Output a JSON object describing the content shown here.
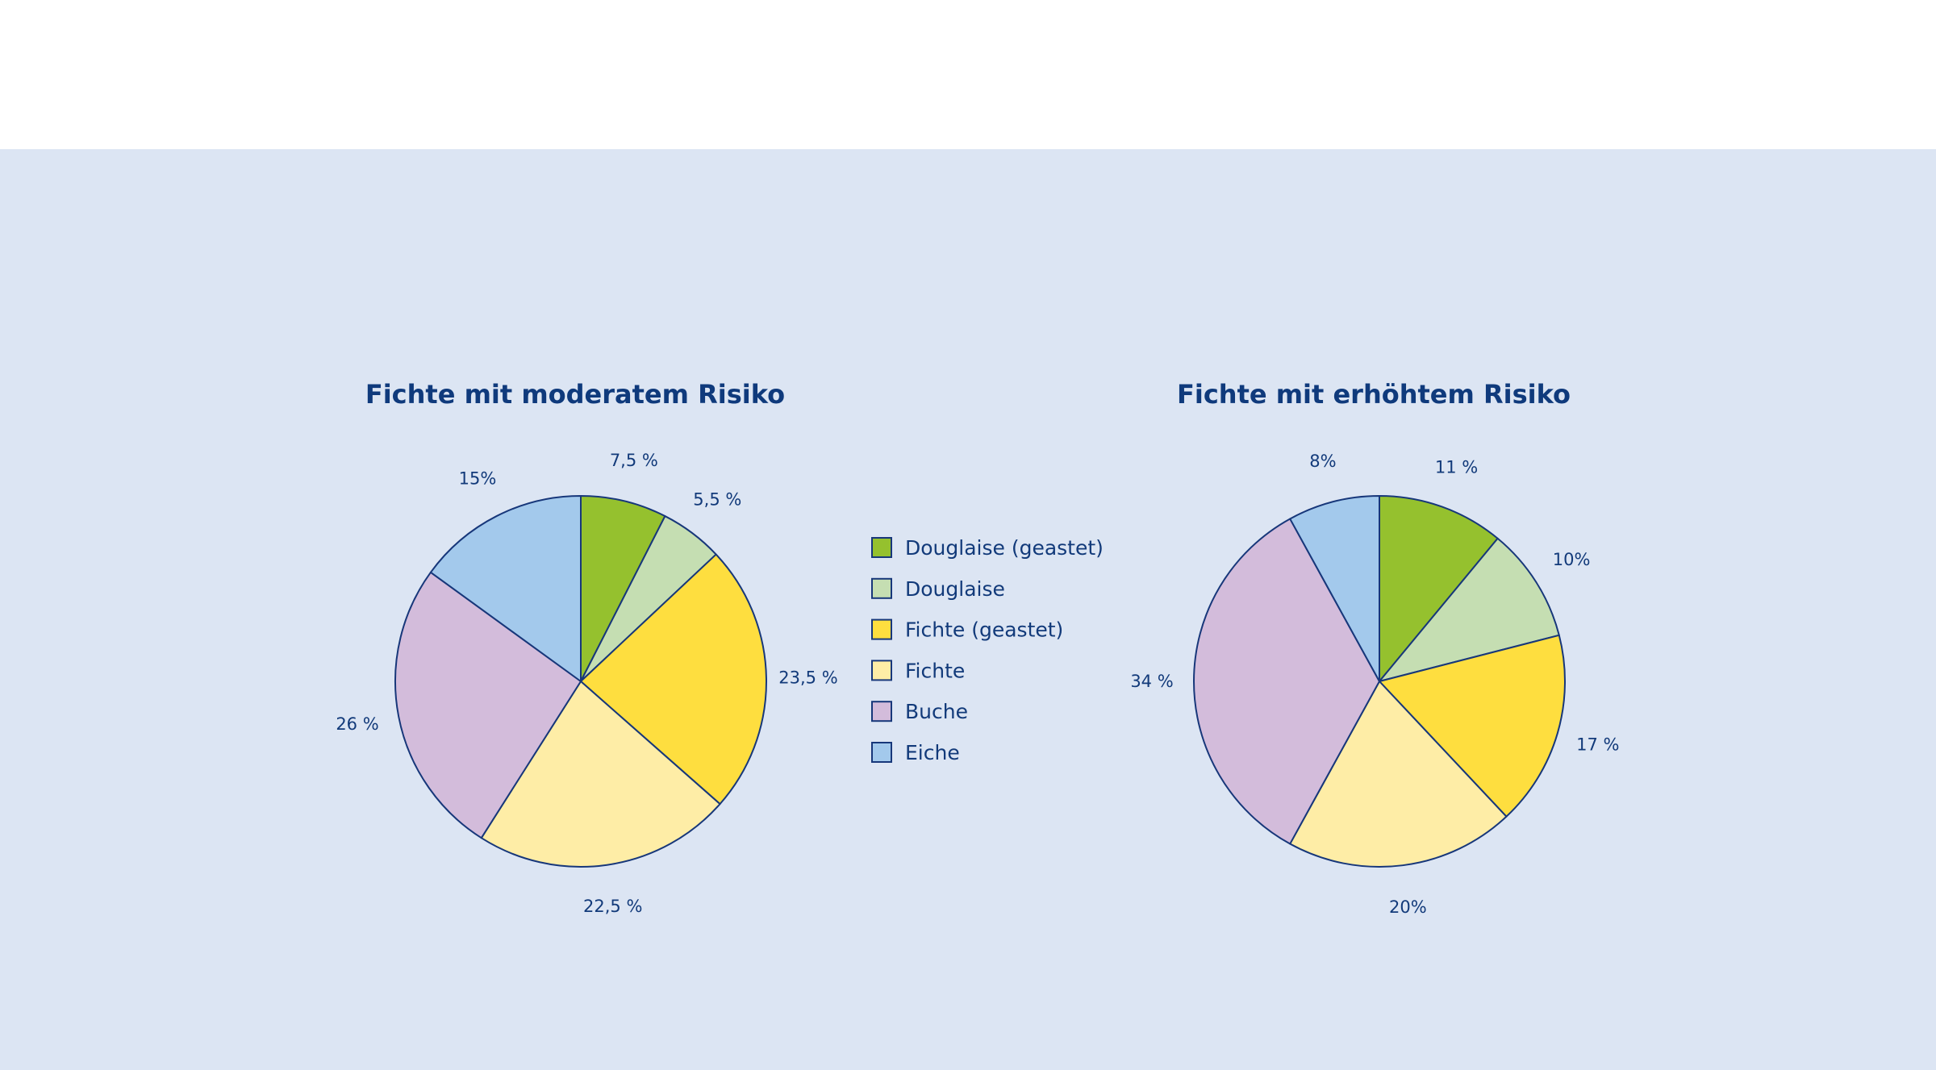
{
  "colors": {
    "background": "#dce5f3",
    "stroke": "#17377a",
    "text": "#123a7a"
  },
  "chart_data": {
    "type": "pie",
    "legend": {
      "placement": "center",
      "entries": [
        {
          "label": "Douglaise (geastet)",
          "color": "#95c12e"
        },
        {
          "label": "Douglaise",
          "color": "#c5deb2"
        },
        {
          "label": "Fichte (geastet)",
          "color": "#fede3f"
        },
        {
          "label": "Fichte",
          "color": "#feeda6"
        },
        {
          "label": "Buche",
          "color": "#d3bcdb"
        },
        {
          "label": "Eiche",
          "color": "#a3c9ec"
        }
      ]
    },
    "charts": [
      {
        "title": "Fichte mit moderatem Risiko",
        "values": [
          7.5,
          5.5,
          23.5,
          22.5,
          26,
          15
        ],
        "labels": [
          "7,5 %",
          "5,5 %",
          "23,5 %",
          "22,5 %",
          "26 %",
          "15%"
        ]
      },
      {
        "title": "Fichte mit erhöhtem Risiko",
        "values": [
          11,
          10,
          17,
          20,
          34,
          8
        ],
        "labels": [
          "11 %",
          "10%",
          "17 %",
          "20%",
          "34 %",
          "8%"
        ]
      }
    ]
  }
}
